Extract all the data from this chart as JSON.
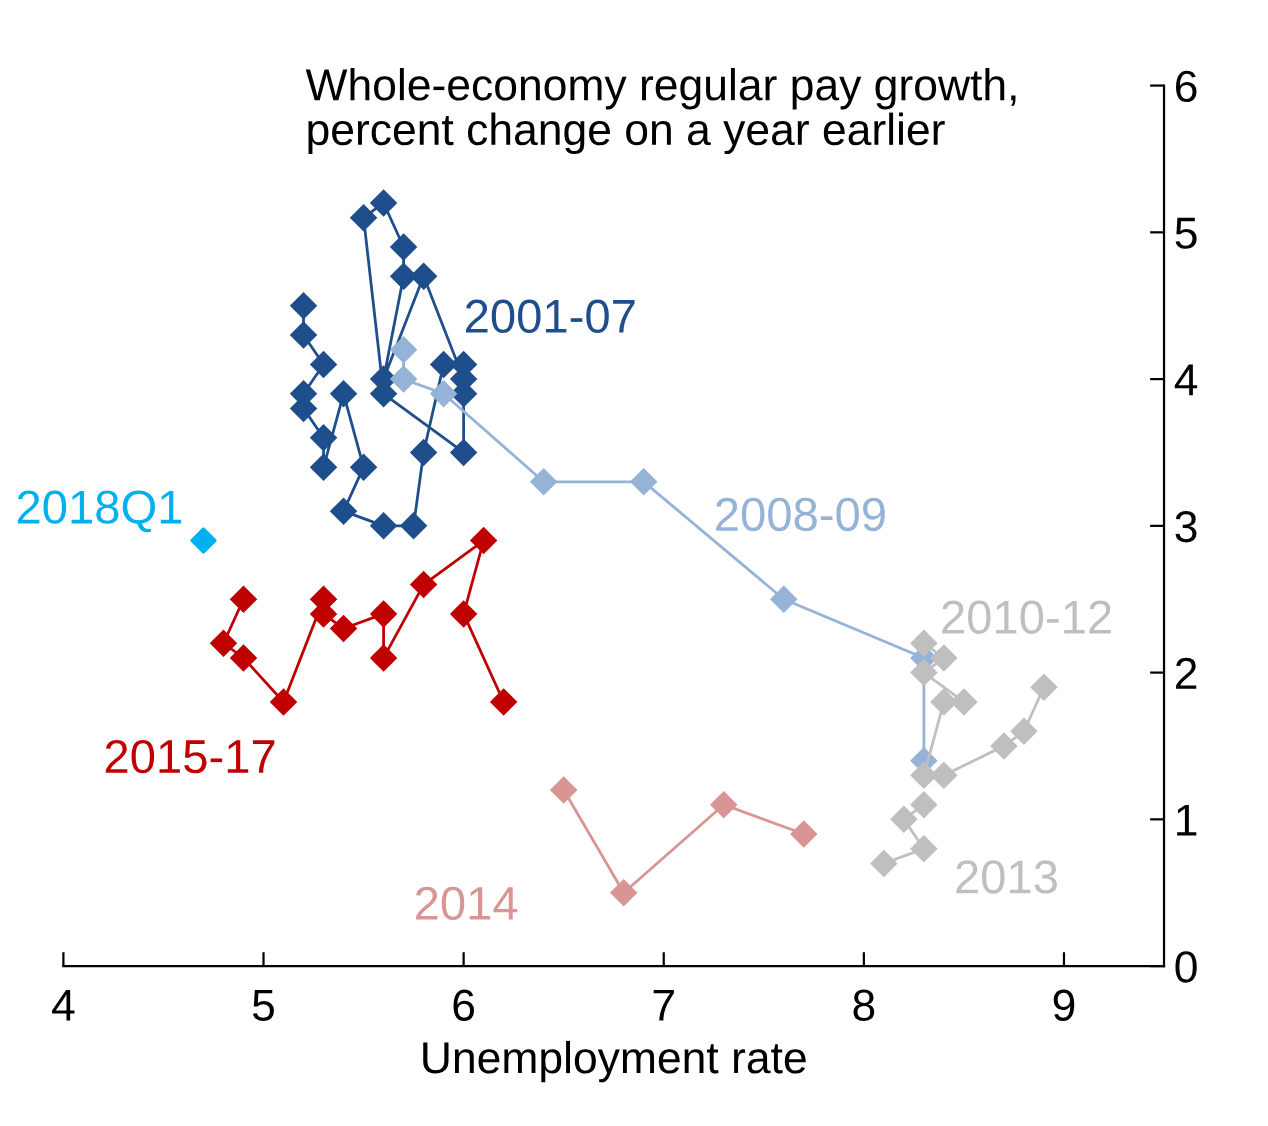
{
  "chart_data": {
    "type": "line",
    "title": "Whole-economy regular pay growth,\npercent change on a year earlier",
    "xlabel": "Unemployment rate",
    "xlim": [
      4,
      9.5
    ],
    "xticks": [
      4,
      5,
      6,
      7,
      8,
      9
    ],
    "ylim": [
      0,
      6
    ],
    "yticks": [
      0,
      1,
      2,
      3,
      4,
      5,
      6
    ],
    "grid": false,
    "legend": false,
    "marker": "diamond",
    "series": [
      {
        "name": "2001-07",
        "color": "#1f4e8c",
        "x": [
          5.2,
          5.2,
          5.3,
          5.2,
          5.2,
          5.3,
          5.3,
          5.4,
          5.5,
          5.4,
          5.6,
          5.75,
          5.8,
          5.9,
          6.0,
          6.0,
          5.6,
          5.5,
          5.6,
          5.7,
          5.7,
          5.6,
          5.8,
          6.0,
          6.0
        ],
        "values": [
          4.5,
          4.3,
          4.1,
          3.9,
          3.8,
          3.6,
          3.4,
          3.9,
          3.4,
          3.1,
          3.0,
          3.0,
          3.5,
          4.1,
          4.1,
          3.5,
          3.9,
          5.1,
          5.2,
          4.9,
          4.7,
          4.0,
          4.7,
          4.0,
          3.9
        ]
      },
      {
        "name": "2008-09",
        "color": "#95b3d7",
        "x": [
          5.7,
          5.7,
          5.9,
          6.4,
          6.9,
          7.6,
          8.3,
          8.3
        ],
        "values": [
          4.2,
          4.0,
          3.9,
          3.3,
          3.3,
          2.5,
          2.1,
          1.4
        ]
      },
      {
        "name": "2010-12",
        "color": "#bfbfbf",
        "x": [
          8.3,
          8.4,
          8.3,
          8.5,
          8.4,
          8.3,
          8.4,
          8.7,
          8.8,
          8.9
        ],
        "values": [
          2.2,
          2.1,
          2.0,
          1.8,
          1.8,
          1.3,
          1.3,
          1.5,
          1.6,
          1.9
        ]
      },
      {
        "name": "2013",
        "color": "#bfbfbf",
        "x": [
          8.3,
          8.2,
          8.3,
          8.1
        ],
        "values": [
          1.1,
          1.0,
          0.8,
          0.7
        ]
      },
      {
        "name": "2014",
        "color": "#d99594",
        "x": [
          7.7,
          7.3,
          6.8,
          6.5
        ],
        "values": [
          0.9,
          1.1,
          0.5,
          1.2
        ]
      },
      {
        "name": "2015-17",
        "color": "#c00000",
        "x": [
          6.2,
          6.0,
          6.1,
          5.8,
          5.6,
          5.6,
          5.4,
          5.3,
          5.3,
          5.1,
          4.9,
          4.8,
          4.9
        ],
        "values": [
          1.8,
          2.4,
          2.9,
          2.6,
          2.1,
          2.4,
          2.3,
          2.4,
          2.5,
          1.8,
          2.1,
          2.2,
          2.5
        ]
      },
      {
        "name": "2018Q1",
        "color": "#00b0f0",
        "type": "scatter",
        "x": [
          4.7
        ],
        "values": [
          2.9
        ]
      }
    ]
  }
}
